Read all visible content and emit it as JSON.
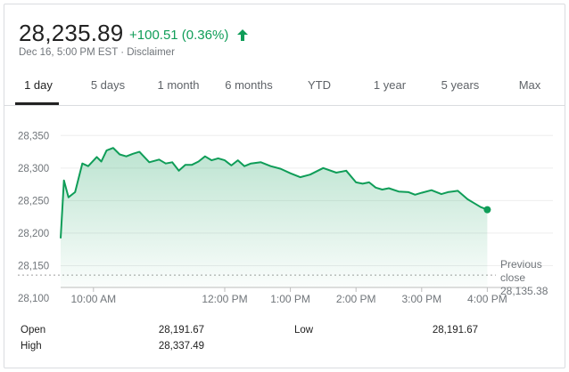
{
  "quote": {
    "price": "28,235.89",
    "change": "+100.51 (0.36%)",
    "date_line": "Dec 16, 5:00 PM EST · Disclaimer",
    "up_color": "#0f9d58"
  },
  "tabs": [
    {
      "label": "1 day",
      "active": true
    },
    {
      "label": "5 days",
      "active": false
    },
    {
      "label": "1 month",
      "active": false
    },
    {
      "label": "6 months",
      "active": false
    },
    {
      "label": "YTD",
      "active": false
    },
    {
      "label": "1 year",
      "active": false
    },
    {
      "label": "5 years",
      "active": false
    },
    {
      "label": "Max",
      "active": false
    }
  ],
  "chart_data": {
    "type": "area",
    "y_ticks": [
      "28,350",
      "28,300",
      "28,250",
      "28,200",
      "28,150",
      "28,100"
    ],
    "ylim": [
      28100,
      28360
    ],
    "x_ticks": [
      "10:00 AM",
      "12:00 PM",
      "1:00 PM",
      "2:00 PM",
      "3:00 PM",
      "4:00 PM"
    ],
    "x_tick_hours": [
      10,
      12,
      13,
      14,
      15,
      16
    ],
    "xlim": [
      9.5,
      17.0
    ],
    "previous_close": 28135.38,
    "previous_close_label": [
      "Previous",
      "close",
      "28,135.38"
    ],
    "line_color": "#0f9d58",
    "series": [
      {
        "x": [
          9.5,
          9.55,
          9.62,
          9.72,
          9.83,
          9.92,
          10.05,
          10.12,
          10.2,
          10.3,
          10.4,
          10.5,
          10.6,
          10.7,
          10.85,
          11.0,
          11.1,
          11.2,
          11.3,
          11.4,
          11.5,
          11.6,
          11.7,
          11.8,
          11.9,
          12.0,
          12.1,
          12.2,
          12.3,
          12.4,
          12.55,
          12.7,
          12.85,
          13.0,
          13.15,
          13.3,
          13.5,
          13.7,
          13.85,
          14.0,
          14.1,
          14.2,
          14.3,
          14.4,
          14.5,
          14.65,
          14.8,
          14.9,
          15.0,
          15.15,
          15.3,
          15.4,
          15.55,
          15.7,
          15.8,
          15.9,
          16.0
        ],
        "y": [
          28192,
          28281,
          28255,
          28263,
          28307,
          28303,
          28317,
          28310,
          28327,
          28331,
          28321,
          28318,
          28322,
          28325,
          28309,
          28313,
          28307,
          28309,
          28296,
          28305,
          28305,
          28310,
          28318,
          28312,
          28315,
          28312,
          28304,
          28312,
          28303,
          28307,
          28309,
          28303,
          28299,
          28292,
          28286,
          28290,
          28300,
          28293,
          28296,
          28278,
          28276,
          28278,
          28270,
          28267,
          28269,
          28264,
          28263,
          28259,
          28262,
          28266,
          28260,
          28263,
          28265,
          28252,
          28246,
          28240,
          28236
        ]
      }
    ]
  },
  "stats": {
    "open_label": "Open",
    "open_value": "28,191.67",
    "high_label": "High",
    "high_value": "28,337.49",
    "low_label": "Low",
    "low_value": "28,191.67"
  }
}
